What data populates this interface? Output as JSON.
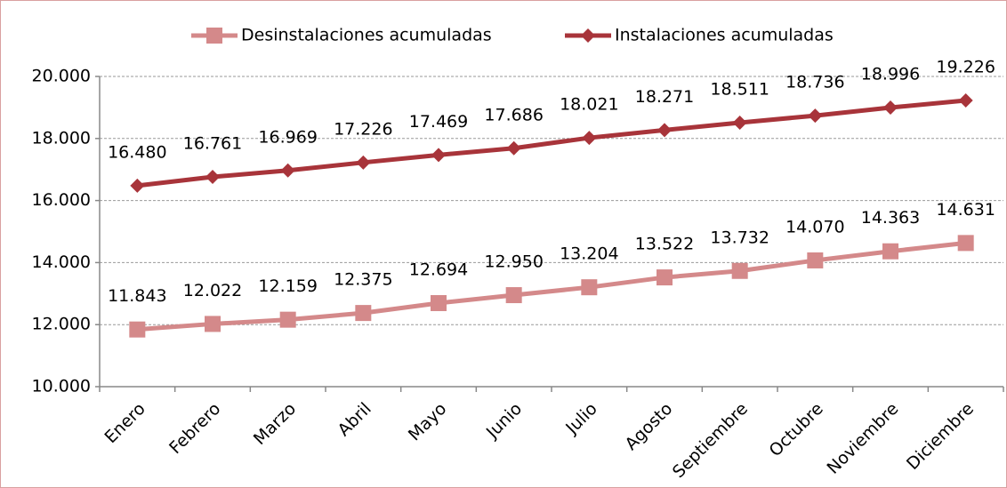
{
  "chart_data": {
    "type": "line",
    "categories": [
      "Enero",
      "Febrero",
      "Marzo",
      "Abril",
      "Mayo",
      "Junio",
      "Julio",
      "Agosto",
      "Septiembre",
      "Octubre",
      "Noviembre",
      "Diciembre"
    ],
    "series": [
      {
        "name": "Desinstalaciones acumuladas",
        "color": "#d4898a",
        "marker": "square",
        "values": [
          11843,
          12022,
          12159,
          12375,
          12694,
          12950,
          13204,
          13522,
          13732,
          14070,
          14363,
          14631
        ],
        "value_labels": [
          "11.843",
          "12.022",
          "12.159",
          "12.375",
          "12.694",
          "12.950",
          "13.204",
          "13.522",
          "13.732",
          "14.070",
          "14.363",
          "14.631"
        ]
      },
      {
        "name": "Instalaciones acumuladas",
        "color": "#a8343a",
        "marker": "diamond",
        "values": [
          16480,
          16761,
          16969,
          17226,
          17469,
          17686,
          18021,
          18271,
          18511,
          18736,
          18996,
          19226
        ],
        "value_labels": [
          "16.480",
          "16.761",
          "16.969",
          "17.226",
          "17.469",
          "17.686",
          "18.021",
          "18.271",
          "18.511",
          "18.736",
          "18.996",
          "19.226"
        ]
      }
    ],
    "ylim": [
      10000,
      20000
    ],
    "yticks": [
      {
        "value": 10000,
        "label": "10.000"
      },
      {
        "value": 12000,
        "label": "12.000"
      },
      {
        "value": 14000,
        "label": "14.000"
      },
      {
        "value": 16000,
        "label": "16.000"
      },
      {
        "value": 18000,
        "label": "18.000"
      },
      {
        "value": 20000,
        "label": "20.000"
      }
    ],
    "grid": true,
    "legend": "top"
  }
}
